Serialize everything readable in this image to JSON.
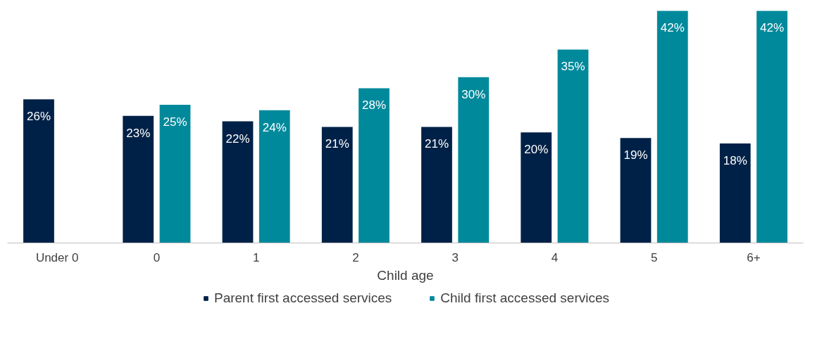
{
  "chart_data": {
    "type": "bar",
    "xlabel": "Child age",
    "categories": [
      "Under 0",
      "0",
      "1",
      "2",
      "3",
      "4",
      "5",
      "6+"
    ],
    "series": [
      {
        "name": "Parent first accessed services",
        "color": "#002147",
        "values": [
          26,
          23,
          22,
          21,
          21,
          20,
          19,
          18
        ],
        "value_labels": [
          "26%",
          "23%",
          "22%",
          "21%",
          "21%",
          "20%",
          "19%",
          "18%"
        ]
      },
      {
        "name": "Child first accessed services",
        "color": "#00899b",
        "values": [
          null,
          25,
          24,
          28,
          30,
          35,
          42,
          42
        ],
        "value_labels": [
          null,
          "25%",
          "24%",
          "28%",
          "30%",
          "35%",
          "42%",
          "42%"
        ]
      }
    ],
    "grid": false,
    "legend": "bottom",
    "tick_labels": "x"
  }
}
